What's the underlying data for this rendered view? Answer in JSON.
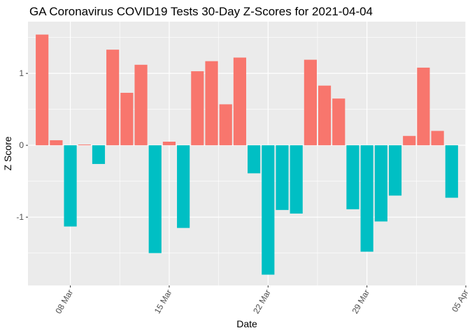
{
  "chart_data": {
    "type": "bar",
    "title": "GA Coronavirus COVID19 Tests 30-Day Z-Scores for 2021-04-04",
    "xlabel": "Date",
    "ylabel": "Z Score",
    "x_ticks": [
      {
        "date": "2021-03-08",
        "label": "08 Mar"
      },
      {
        "date": "2021-03-15",
        "label": "15 Mar"
      },
      {
        "date": "2021-03-22",
        "label": "22 Mar"
      },
      {
        "date": "2021-03-29",
        "label": "29 Mar"
      },
      {
        "date": "2021-04-05",
        "label": "05 Apr"
      }
    ],
    "y_ticks": [
      {
        "value": -1,
        "label": "-1"
      },
      {
        "value": 0,
        "label": "0"
      },
      {
        "value": 1,
        "label": "1"
      }
    ],
    "xlim": [
      "2021-03-05",
      "2021-04-05"
    ],
    "ylim": [
      -1.95,
      1.72
    ],
    "grid": true,
    "legend": "none",
    "colors": {
      "positive": "#F8766D",
      "negative": "#00BFC4",
      "panel": "#EBEBEB",
      "grid": "#FFFFFF"
    },
    "dates": [
      "2021-03-06",
      "2021-03-07",
      "2021-03-08",
      "2021-03-09",
      "2021-03-10",
      "2021-03-11",
      "2021-03-12",
      "2021-03-13",
      "2021-03-14",
      "2021-03-15",
      "2021-03-16",
      "2021-03-17",
      "2021-03-18",
      "2021-03-19",
      "2021-03-20",
      "2021-03-21",
      "2021-03-22",
      "2021-03-23",
      "2021-03-24",
      "2021-03-25",
      "2021-03-26",
      "2021-03-27",
      "2021-03-28",
      "2021-03-29",
      "2021-03-30",
      "2021-03-31",
      "2021-04-01",
      "2021-04-02",
      "2021-04-03",
      "2021-04-04"
    ],
    "values": [
      1.54,
      0.07,
      -1.13,
      0.01,
      -0.26,
      1.33,
      0.73,
      1.12,
      -1.5,
      0.05,
      -1.15,
      1.03,
      1.17,
      0.57,
      1.22,
      -0.39,
      -1.8,
      -0.9,
      -0.95,
      1.19,
      0.83,
      0.65,
      -0.89,
      -1.48,
      -1.06,
      -0.7,
      0.13,
      1.08,
      0.2,
      -0.73
    ]
  }
}
